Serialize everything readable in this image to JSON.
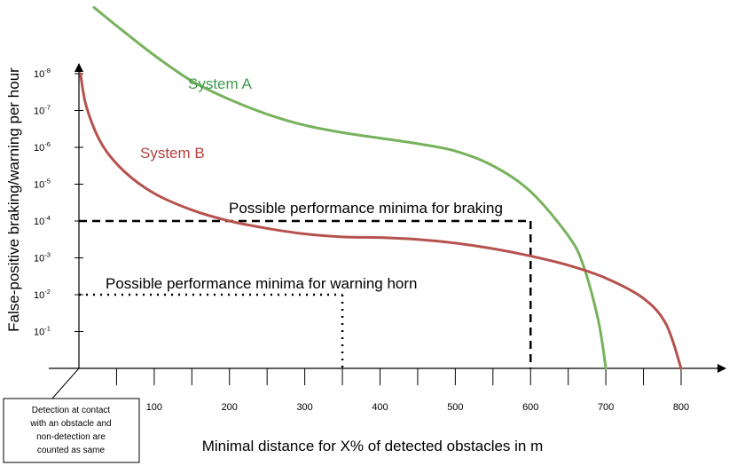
{
  "chart_data": {
    "type": "line",
    "title": "",
    "xlabel": "Minimal distance for X% of detected obstacles in m",
    "ylabel": "False-positive braking/warning per hour",
    "x_ticks": [
      100,
      200,
      300,
      400,
      500,
      600,
      700,
      800
    ],
    "y_ticks": [
      {
        "base": "10",
        "exp": "-1"
      },
      {
        "base": "10",
        "exp": "-2"
      },
      {
        "base": "10",
        "exp": "-3"
      },
      {
        "base": "10",
        "exp": "-4"
      },
      {
        "base": "10",
        "exp": "-5"
      },
      {
        "base": "10",
        "exp": "-6"
      },
      {
        "base": "10",
        "exp": "-7"
      },
      {
        "base": "10",
        "exp": "-8"
      }
    ],
    "series": [
      {
        "name": "System A",
        "color": "#77b25c",
        "points": [
          [
            20,
            9.8
          ],
          [
            50,
            9.3
          ],
          [
            100,
            8.5
          ],
          [
            150,
            7.8
          ],
          [
            200,
            7.3
          ],
          [
            250,
            6.9
          ],
          [
            300,
            6.6
          ],
          [
            350,
            6.4
          ],
          [
            400,
            6.25
          ],
          [
            450,
            6.1
          ],
          [
            500,
            5.9
          ],
          [
            550,
            5.5
          ],
          [
            600,
            4.8
          ],
          [
            650,
            3.6
          ],
          [
            670,
            2.8
          ],
          [
            690,
            1.3
          ],
          [
            700,
            0
          ]
        ]
      },
      {
        "name": "System B",
        "color": "#b5524e",
        "points": [
          [
            2,
            8.0
          ],
          [
            10,
            7.1
          ],
          [
            30,
            6.1
          ],
          [
            60,
            5.35
          ],
          [
            100,
            4.75
          ],
          [
            150,
            4.3
          ],
          [
            200,
            4.0
          ],
          [
            250,
            3.8
          ],
          [
            300,
            3.65
          ],
          [
            350,
            3.57
          ],
          [
            400,
            3.55
          ],
          [
            450,
            3.5
          ],
          [
            500,
            3.4
          ],
          [
            550,
            3.25
          ],
          [
            600,
            3.05
          ],
          [
            650,
            2.8
          ],
          [
            700,
            2.45
          ],
          [
            750,
            1.9
          ],
          [
            780,
            1.2
          ],
          [
            800,
            0
          ]
        ]
      }
    ],
    "reference_lines": [
      {
        "label": "Possible performance minima for braking",
        "x": 600,
        "y_exp": "-4",
        "style": "dashed"
      },
      {
        "label": "Possible performance minima for warning horn",
        "x": 350,
        "y_exp": "-2",
        "style": "dotted"
      }
    ],
    "note": [
      "Detection at contact",
      "with an obstacle and",
      "non-detection are",
      "counted as same"
    ]
  }
}
